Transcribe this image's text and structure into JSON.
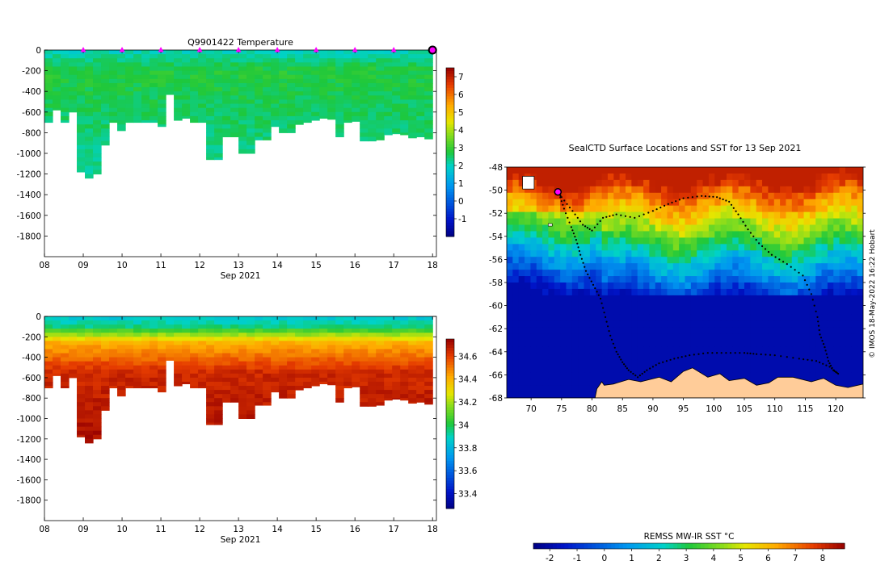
{
  "chart_data": [
    {
      "type": "heatmap",
      "id": "temperature",
      "title": "Q9901422  Temperature",
      "xlabel": "Sep 2021",
      "x_ticks": [
        "08",
        "09",
        "10",
        "11",
        "12",
        "13",
        "14",
        "15",
        "16",
        "17",
        "18"
      ],
      "xlim": [
        8,
        18.1
      ],
      "ylim": [
        -2000,
        0
      ],
      "y_ticks": [
        0,
        -200,
        -400,
        -600,
        -800,
        -1000,
        -1200,
        -1400,
        -1600,
        -1800
      ],
      "colorbar": {
        "min": -2,
        "max": 7.5,
        "ticks": [
          -1,
          0,
          1,
          2,
          3,
          4,
          5,
          6,
          7
        ]
      },
      "surface_marker_days": [
        9,
        10,
        11,
        12,
        13,
        14,
        15,
        16,
        17
      ],
      "current_marker_day": 18,
      "profile_max_depths": [
        700,
        580,
        700,
        600,
        1180,
        1240,
        1200,
        920,
        700,
        780,
        700,
        700,
        700,
        700,
        740,
        430,
        680,
        660,
        700,
        700,
        1060,
        1060,
        840,
        840,
        1000,
        1000,
        870,
        870,
        740,
        800,
        800,
        720,
        700,
        680,
        660,
        670,
        840,
        700,
        690,
        880,
        880,
        870,
        820,
        810,
        820,
        850,
        840,
        860
      ],
      "temperature_profile": [
        [
          0,
          2.0
        ],
        [
          200,
          2.8
        ],
        [
          700,
          2.5
        ],
        [
          1300,
          2.2
        ]
      ]
    },
    {
      "type": "heatmap",
      "id": "salinity",
      "title": "",
      "xlabel": "Sep 2021",
      "x_ticks": [
        "08",
        "09",
        "10",
        "11",
        "12",
        "13",
        "14",
        "15",
        "16",
        "17",
        "18"
      ],
      "xlim": [
        8,
        18.1
      ],
      "ylim": [
        -2000,
        0
      ],
      "y_ticks": [
        0,
        -200,
        -400,
        -600,
        -800,
        -1000,
        -1200,
        -1400,
        -1600,
        -1800
      ],
      "colorbar": {
        "min": 33.27,
        "max": 34.75,
        "ticks": [
          33.4,
          33.6,
          33.8,
          34,
          34.2,
          34.4,
          34.6
        ]
      },
      "profile_max_depths": [
        700,
        580,
        700,
        600,
        1180,
        1240,
        1200,
        920,
        700,
        780,
        700,
        700,
        700,
        700,
        740,
        430,
        680,
        660,
        700,
        700,
        1060,
        1060,
        840,
        840,
        1000,
        1000,
        870,
        870,
        740,
        800,
        800,
        720,
        700,
        680,
        660,
        670,
        840,
        700,
        690,
        880,
        880,
        870,
        820,
        810,
        820,
        850,
        840,
        860
      ],
      "salinity_profile": [
        [
          0,
          33.85
        ],
        [
          100,
          33.95
        ],
        [
          250,
          34.4
        ],
        [
          550,
          34.65
        ],
        [
          1300,
          34.72
        ]
      ]
    },
    {
      "type": "map",
      "id": "sst_map",
      "title": "SealCTD Surface Locations and SST for 13 Sep 2021",
      "lon_range": [
        66,
        124.5
      ],
      "lat_range": [
        -68,
        -48
      ],
      "x_ticks": [
        70,
        75,
        80,
        85,
        90,
        95,
        100,
        105,
        110,
        115,
        120
      ],
      "y_ticks": [
        -48,
        -50,
        -52,
        -54,
        -56,
        -58,
        -60,
        -62,
        -64,
        -66,
        -68
      ],
      "credit": "© IMOS 18-May-2022 16:22 Hobart",
      "track_lonlat": [
        [
          74.3,
          -50.1
        ],
        [
          75,
          -50.6
        ],
        [
          76.8,
          -51.8
        ],
        [
          78.5,
          -53
        ],
        [
          80,
          -53.5
        ],
        [
          81.8,
          -52.4
        ],
        [
          84,
          -52.1
        ],
        [
          87,
          -52.4
        ],
        [
          90,
          -51.8
        ],
        [
          92.5,
          -51.2
        ],
        [
          95,
          -50.7
        ],
        [
          98,
          -50.5
        ],
        [
          100.5,
          -50.6
        ],
        [
          102.5,
          -51
        ],
        [
          104,
          -52.1
        ],
        [
          105.6,
          -53.4
        ],
        [
          107.4,
          -54.6
        ],
        [
          109.5,
          -55.6
        ],
        [
          112,
          -56.4
        ],
        [
          114.6,
          -57.4
        ],
        [
          116,
          -59
        ],
        [
          117,
          -61
        ],
        [
          117.4,
          -62.5
        ],
        [
          118.2,
          -63.6
        ],
        [
          118.8,
          -64.8
        ],
        [
          119.6,
          -65.6
        ],
        [
          120.4,
          -65.9
        ],
        [
          119,
          -65.3
        ],
        [
          116.8,
          -64.8
        ],
        [
          114,
          -64.6
        ],
        [
          110,
          -64.3
        ],
        [
          107,
          -64.2
        ],
        [
          105,
          -64.1
        ],
        [
          102,
          -64.1
        ],
        [
          99,
          -64.1
        ],
        [
          96,
          -64.3
        ],
        [
          93.5,
          -64.6
        ],
        [
          91,
          -65
        ],
        [
          89,
          -65.6
        ],
        [
          87.5,
          -66.2
        ],
        [
          86,
          -65.6
        ],
        [
          85,
          -64.9
        ],
        [
          84,
          -64
        ],
        [
          83,
          -62.6
        ],
        [
          82.2,
          -61
        ],
        [
          81.4,
          -59.4
        ],
        [
          80.2,
          -58.2
        ],
        [
          79,
          -57
        ],
        [
          78.1,
          -55.6
        ],
        [
          77.4,
          -54.3
        ],
        [
          76.6,
          -53.2
        ],
        [
          75.4,
          -51.6
        ],
        [
          74.6,
          -50.3
        ]
      ]
    },
    {
      "type": "colorbar",
      "id": "sst_colorbar",
      "label": "REMSS MW-IR SST °C",
      "min": -2.6,
      "max": 8.8,
      "ticks": [
        -2,
        -1,
        0,
        1,
        2,
        3,
        4,
        5,
        6,
        7,
        8
      ]
    }
  ]
}
